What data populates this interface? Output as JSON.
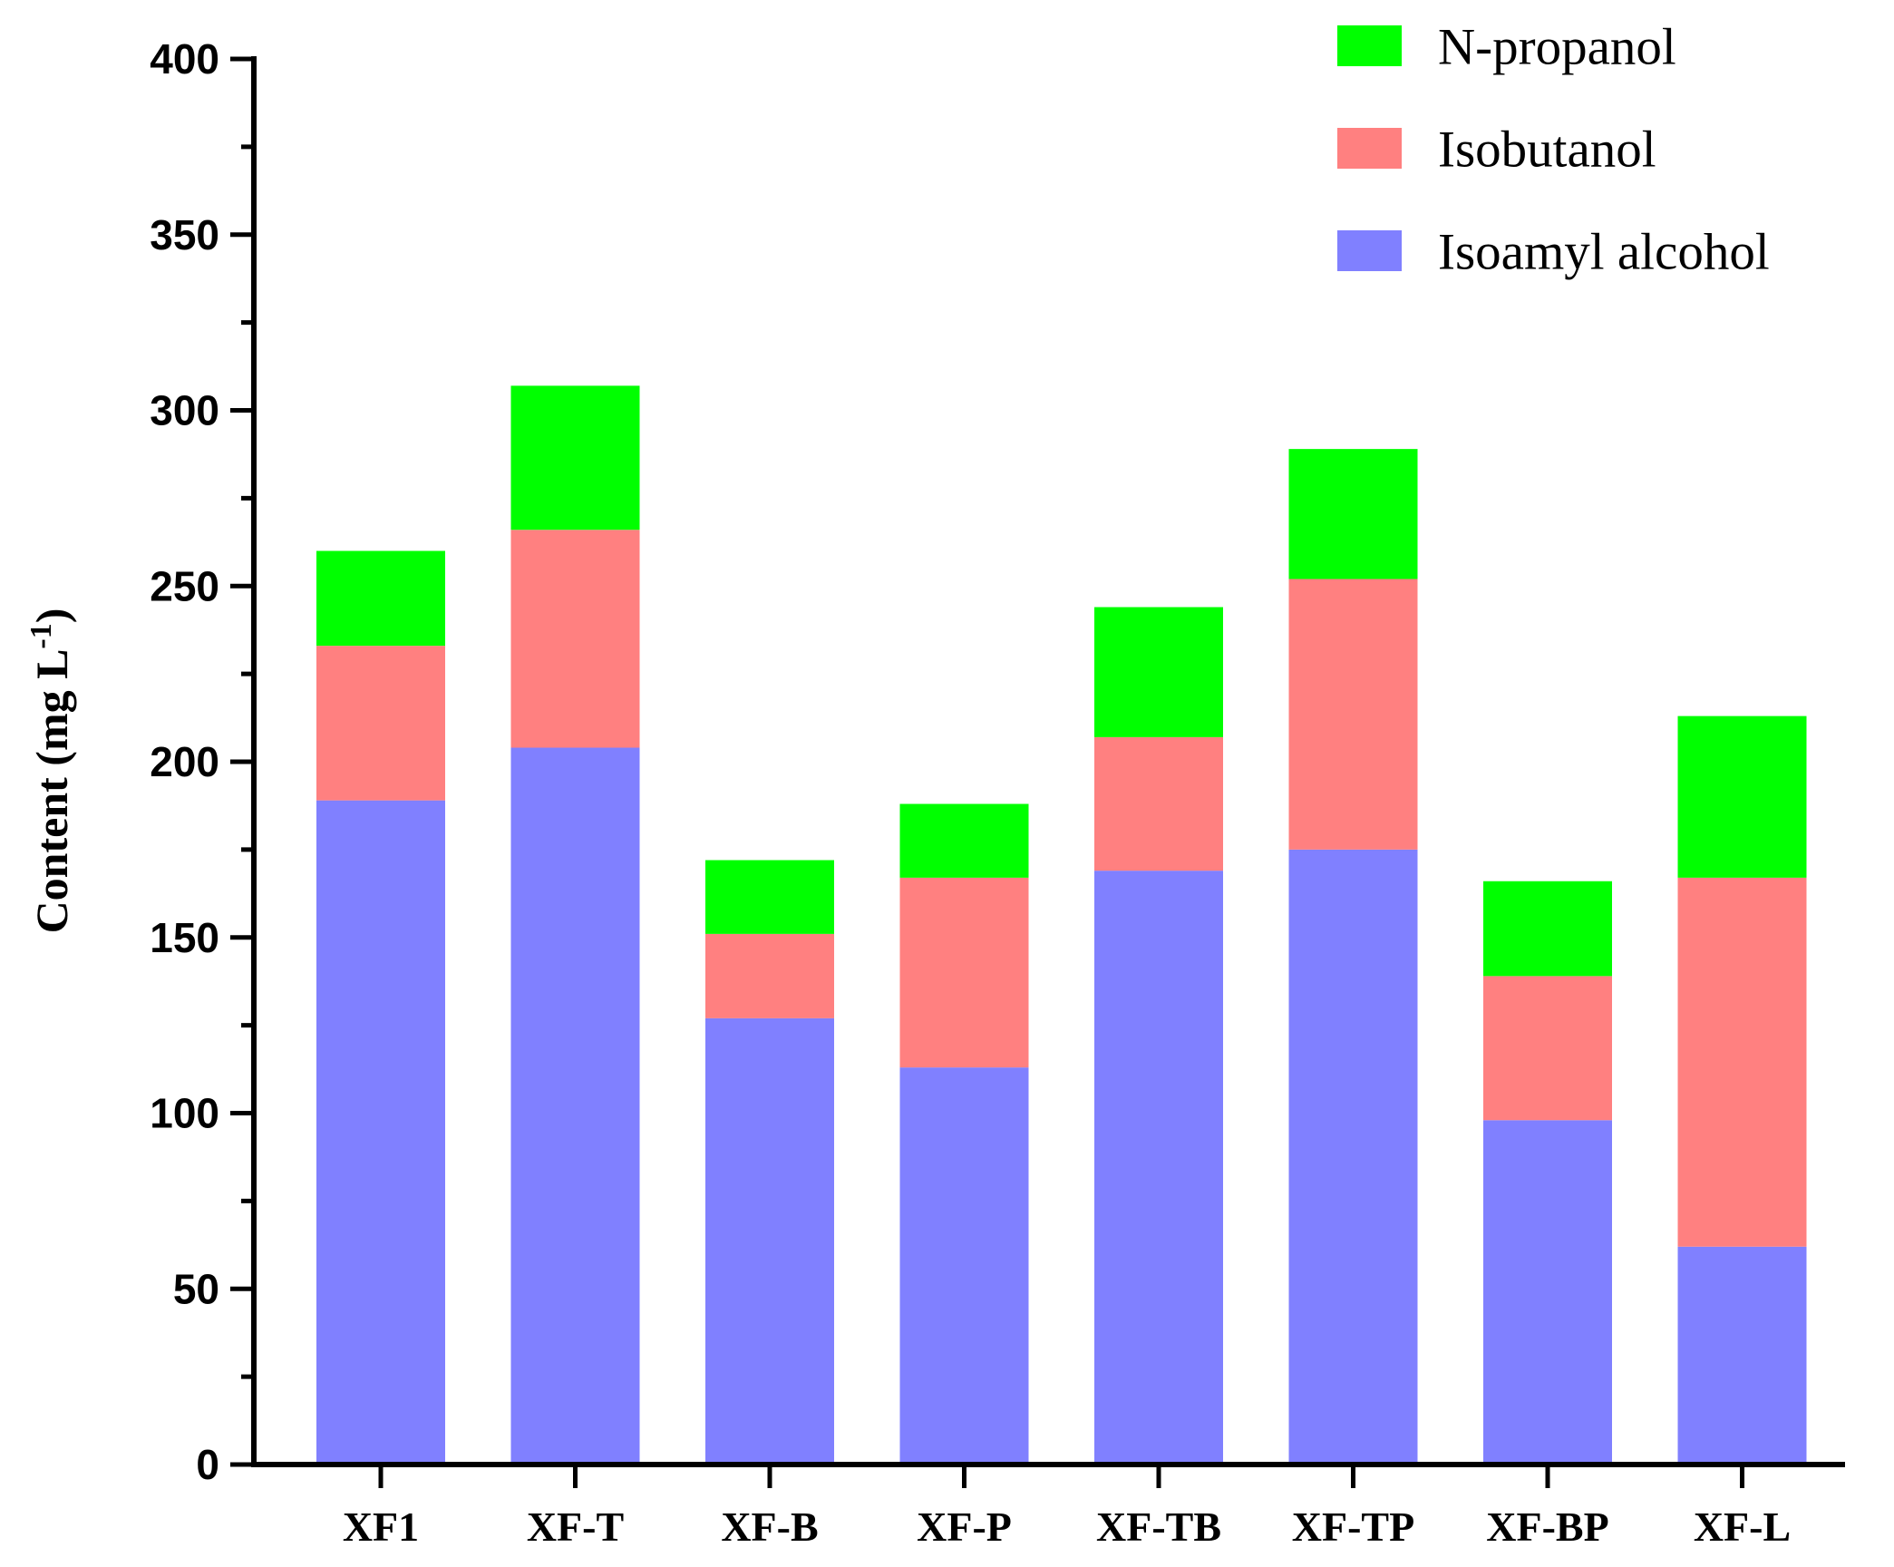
{
  "chart_data": {
    "type": "bar",
    "stacked": true,
    "title": "",
    "xlabel": "",
    "ylabel": "Content (mg L",
    "ylabel_superscript": "-1",
    "ylabel_close": ")",
    "ylim": [
      0,
      400
    ],
    "yticks": [
      0,
      50,
      100,
      150,
      200,
      250,
      300,
      350,
      400
    ],
    "y_minor_step": 25,
    "grid": false,
    "legend_position": "top-right",
    "categories": [
      "XF1",
      "XF-T",
      "XF-B",
      "XF-P",
      "XF-TB",
      "XF-TP",
      "XF-BP",
      "XF-L"
    ],
    "series": [
      {
        "name": "Isoamyl alcohol",
        "color": "#8080ff",
        "values": [
          189,
          204,
          127,
          113,
          169,
          175,
          98,
          62
        ]
      },
      {
        "name": "Isobutanol",
        "color": "#ff8080",
        "values": [
          44,
          62,
          24,
          54,
          38,
          77,
          41,
          105
        ]
      },
      {
        "name": "N-propanol",
        "color": "#00ff00",
        "values": [
          27,
          41,
          21,
          21,
          37,
          37,
          27,
          46
        ]
      }
    ],
    "legend_order": [
      "N-propanol",
      "Isobutanol",
      "Isoamyl alcohol"
    ]
  }
}
